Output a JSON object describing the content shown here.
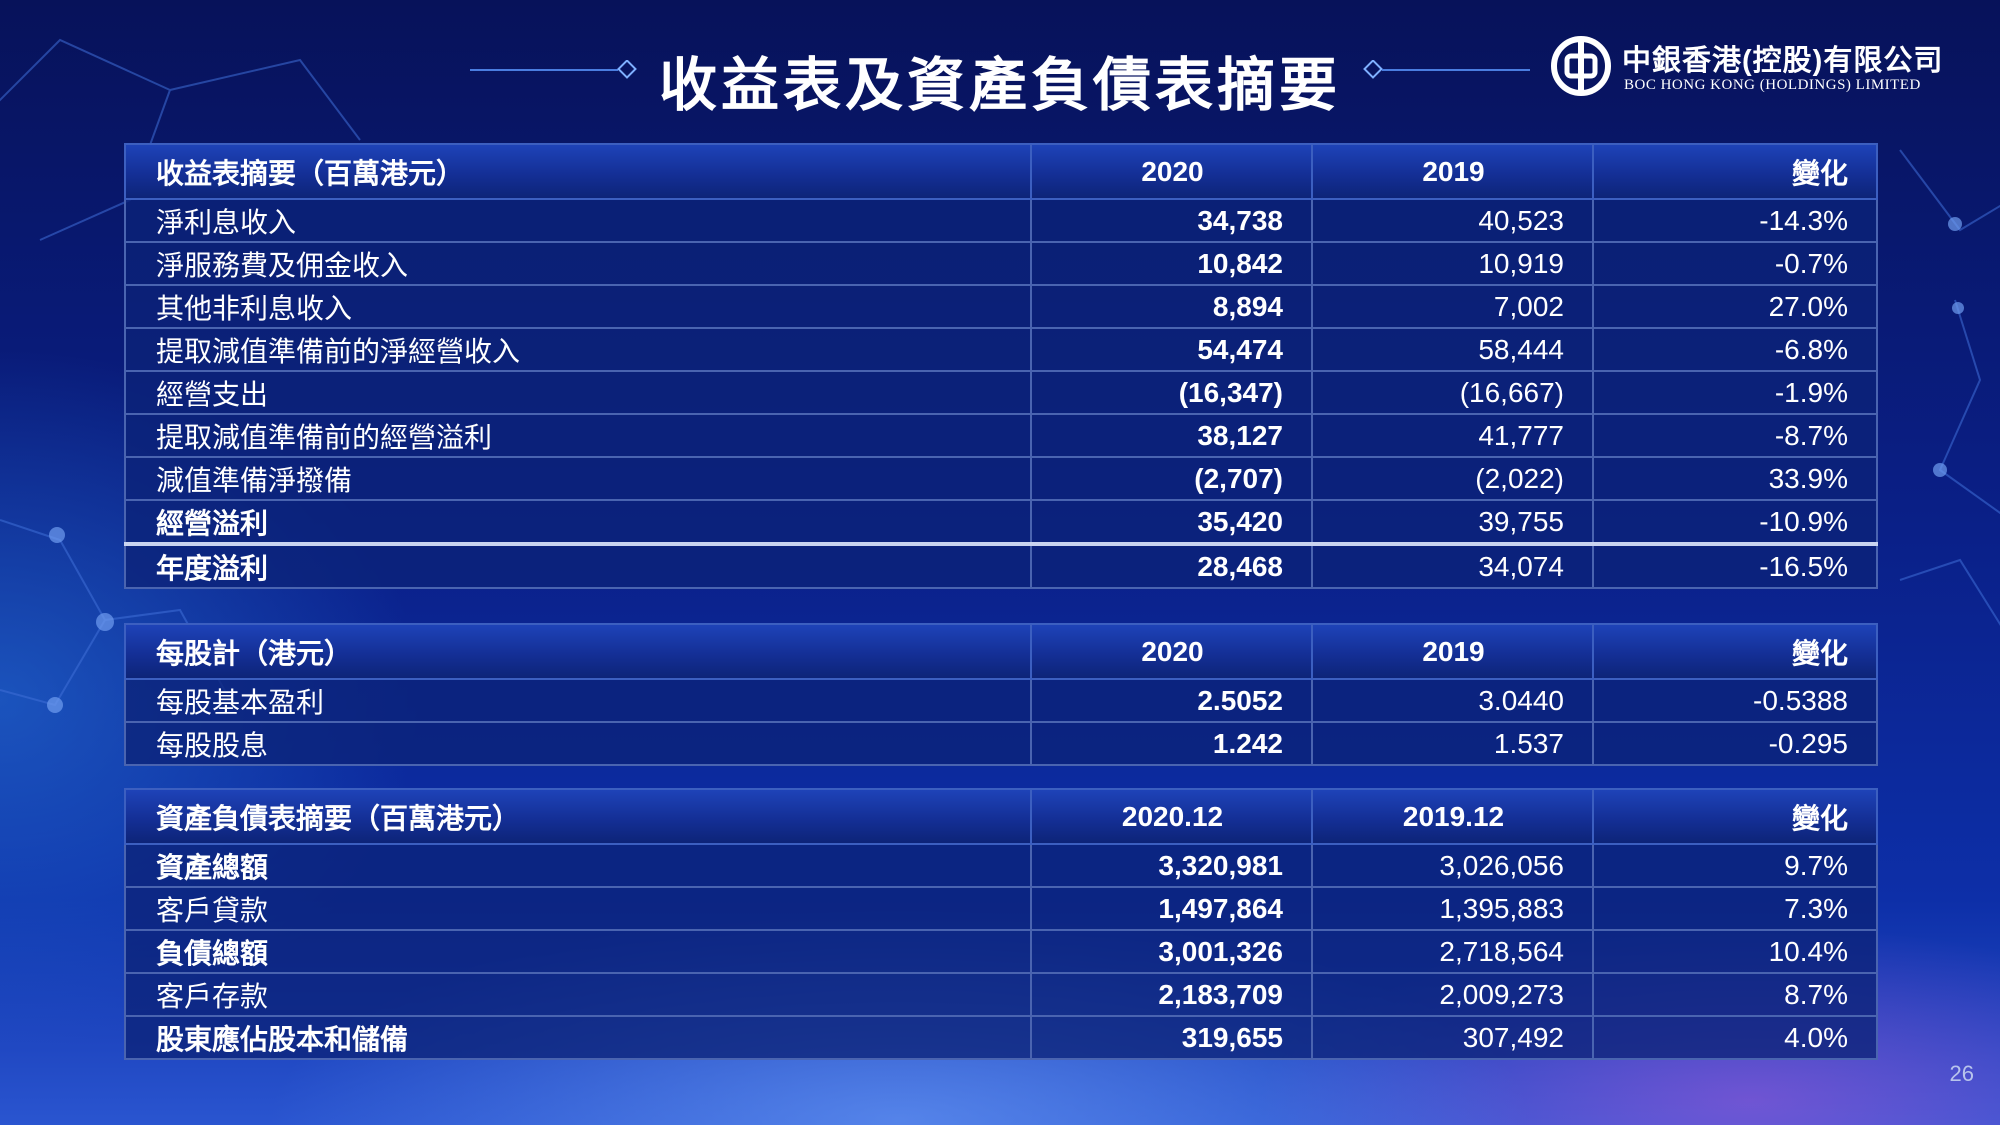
{
  "title": "收益表及資產負債表摘要",
  "logo": {
    "name_cn": "中銀香港(控股)有限公司",
    "name_en": "BOC HONG KONG (HOLDINGS) LIMITED"
  },
  "income": {
    "header": [
      "收益表摘要（百萬港元）",
      "2020",
      "2019",
      "變化"
    ],
    "rows": [
      {
        "label": "淨利息收入",
        "v2020": "34,738",
        "v2019": "40,523",
        "change": "-14.3%"
      },
      {
        "label": "淨服務費及佣金收入",
        "v2020": "10,842",
        "v2019": "10,919",
        "change": "-0.7%"
      },
      {
        "label": "其他非利息收入",
        "v2020": "8,894",
        "v2019": "7,002",
        "change": "27.0%"
      },
      {
        "label": "提取減值準備前的淨經營收入",
        "v2020": "54,474",
        "v2019": "58,444",
        "change": "-6.8%"
      },
      {
        "label": "經營支出",
        "v2020": "(16,347)",
        "v2019": "(16,667)",
        "change": "-1.9%"
      },
      {
        "label": "提取減值準備前的經營溢利",
        "v2020": "38,127",
        "v2019": "41,777",
        "change": "-8.7%"
      },
      {
        "label": "減值準備淨撥備",
        "v2020": "(2,707)",
        "v2019": "(2,022)",
        "change": "33.9%"
      },
      {
        "label": "經營溢利",
        "v2020": "35,420",
        "v2019": "39,755",
        "change": "-10.9%"
      },
      {
        "label": "年度溢利",
        "v2020": "28,468",
        "v2019": "34,074",
        "change": "-16.5%"
      }
    ]
  },
  "per_share": {
    "header": [
      "每股計（港元）",
      "2020",
      "2019",
      "變化"
    ],
    "rows": [
      {
        "label": "每股基本盈利",
        "v2020": "2.5052",
        "v2019": "3.0440",
        "change": "-0.5388"
      },
      {
        "label": "每股股息",
        "v2020": "1.242",
        "v2019": "1.537",
        "change": "-0.295"
      }
    ]
  },
  "balance": {
    "header": [
      "資產負債表摘要（百萬港元）",
      "2020.12",
      "2019.12",
      "變化"
    ],
    "rows": [
      {
        "label": "資產總額",
        "v2020": "3,320,981",
        "v2019": "3,026,056",
        "change": "9.7%"
      },
      {
        "label": "客戶貸款",
        "v2020": "1,497,864",
        "v2019": "1,395,883",
        "change": "7.3%"
      },
      {
        "label": "負債總額",
        "v2020": "3,001,326",
        "v2019": "2,718,564",
        "change": "10.4%"
      },
      {
        "label": "客戶存款",
        "v2020": "2,183,709",
        "v2019": "2,009,273",
        "change": "8.7%"
      },
      {
        "label": "股東應佔股本和儲備",
        "v2020": "319,655",
        "v2019": "307,492",
        "change": "4.0%"
      }
    ]
  },
  "page_number": "26"
}
